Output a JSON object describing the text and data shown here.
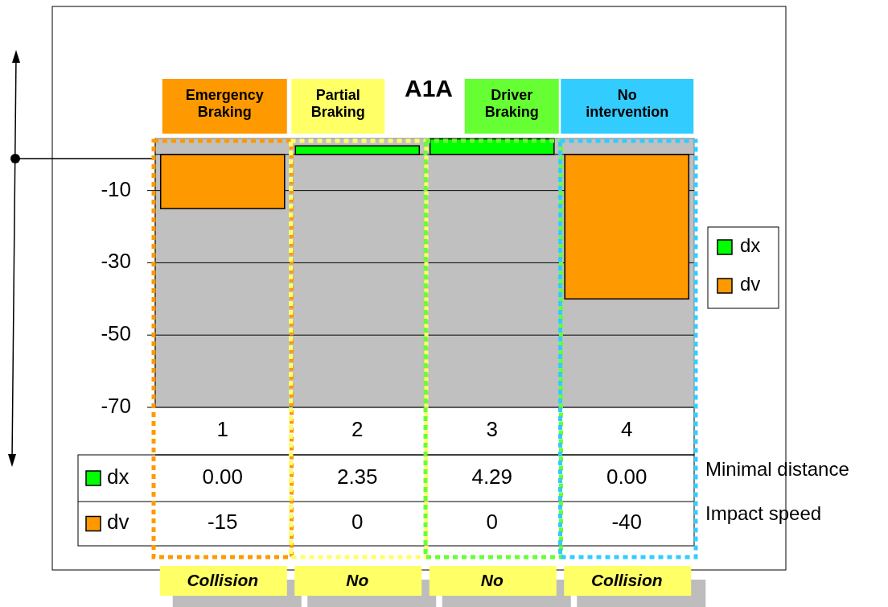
{
  "chart_data": {
    "type": "bar",
    "title": "A1A",
    "categories": [
      "1",
      "2",
      "3",
      "4"
    ],
    "series": [
      {
        "name": "dx",
        "color": "#00ff00",
        "values": [
          0,
          2.35,
          4.29,
          0
        ],
        "value_labels": [
          "0.00",
          "2.35",
          "4.29",
          "0.00"
        ]
      },
      {
        "name": "dv",
        "color": "#ff9900",
        "values": [
          -15,
          0,
          0,
          -40
        ],
        "value_labels": [
          "-15",
          "0",
          "0",
          "-40"
        ]
      }
    ],
    "ylim": [
      -70,
      4.4
    ],
    "yticks": [
      -10,
      -30,
      -50,
      -70
    ],
    "grid": "y",
    "legend": "right",
    "annotations": [
      "Emergency Braking",
      "Partial Braking",
      "Driver Braking",
      "No intervention",
      "Collision",
      "No",
      "No",
      "Collision",
      "Minimal distance",
      "Impact speed"
    ]
  }
}
